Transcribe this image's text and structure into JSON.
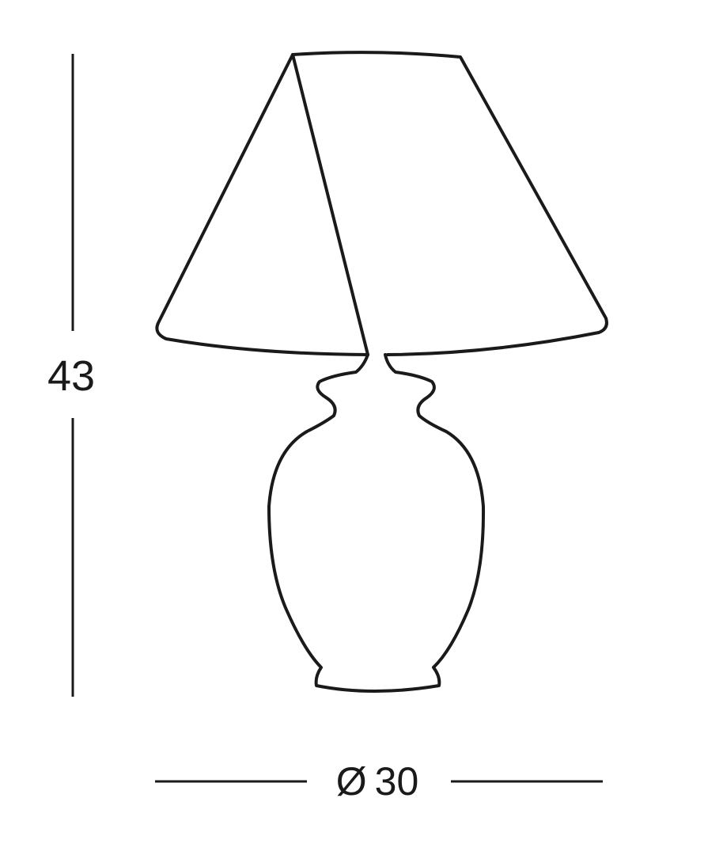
{
  "diagram": {
    "type": "product-dimension-drawing",
    "subject": "table lamp",
    "parts": [
      "lampshade",
      "vase-base"
    ],
    "line_color": "#1a1a1a",
    "background_color": "#ffffff"
  },
  "dimensions": {
    "height": {
      "value": "43"
    },
    "diameter": {
      "symbol": "Ø",
      "value": "30"
    }
  }
}
